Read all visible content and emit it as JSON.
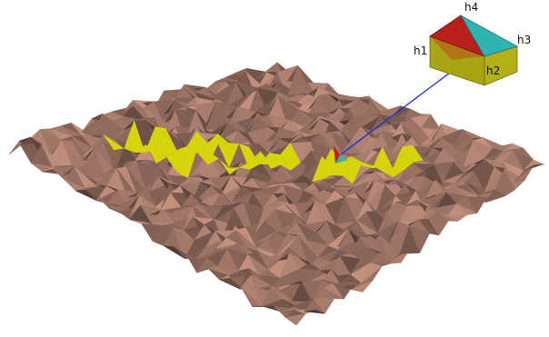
{
  "colors": {
    "terrain": "#a97d6d",
    "terrain_shadow": "#5e3f34",
    "highlight": "#d6d50b",
    "arrow": "#1c2fd6",
    "cube_top_left": "#b91f1b",
    "cube_top_right": "#2fb4b2",
    "cube_side": "#a8a514",
    "cube_edge": "#6b6a12"
  },
  "inset": {
    "labels": [
      "h1",
      "h2",
      "h3",
      "h4"
    ]
  }
}
